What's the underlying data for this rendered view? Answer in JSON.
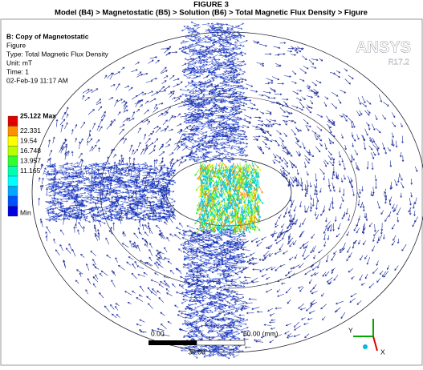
{
  "header": {
    "title": "FIGURE 3",
    "path": "Model (B4) > Magnetostatic (B5) > Solution (B6) > Total Magnetic Flux Density > Figure"
  },
  "info": {
    "lines": [
      "B: Copy of Magnetostatic",
      "Figure",
      "Type: Total Magnetic Flux Density",
      "Unit: mT",
      "Time: 1",
      "02-Feb-19 11:17 AM"
    ]
  },
  "logo": {
    "name": "ANSYS",
    "version": "R17.2"
  },
  "legend": {
    "labels": [
      "25.122 Max",
      "22.331",
      "19.54",
      "16.748",
      "13.957",
      "11.165"
    ],
    "min_label": "Min"
  },
  "scale_bar": {
    "labels": [
      "0.00",
      "60.00 (mm)",
      "30.00"
    ]
  },
  "triad": {
    "y": "Y",
    "x": "X"
  }
}
